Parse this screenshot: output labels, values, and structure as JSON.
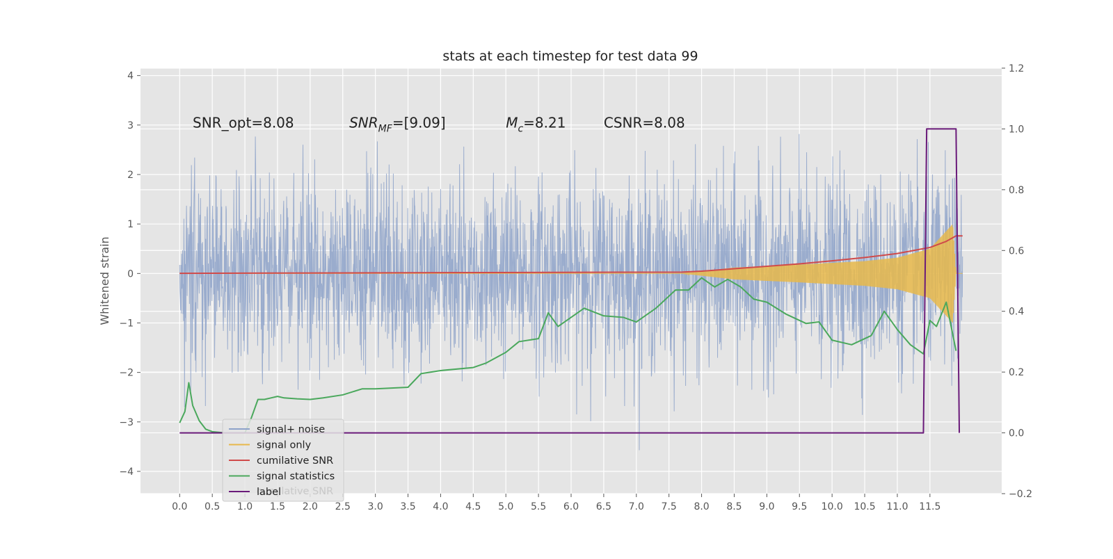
{
  "chart_data": {
    "type": "line",
    "title": "stats at each timestep for test data 99",
    "ylabel": "Whitened strain",
    "xlabel": "",
    "x_ticks": [
      "0.0",
      "0.5",
      "1.0",
      "1.5",
      "2.0",
      "2.5",
      "3.0",
      "3.5",
      "4.0",
      "4.5",
      "5.0",
      "5.5",
      "6.0",
      "6.5",
      "7.0",
      "7.5",
      "8.0",
      "8.5",
      "9.0",
      "9.5",
      "10.0",
      "10.5",
      "11.0",
      "11.5"
    ],
    "y_left_ticks": [
      "−4",
      "−3",
      "−2",
      "−1",
      "0",
      "1",
      "2",
      "3",
      "4"
    ],
    "y_right_ticks": [
      "−0.2",
      "0.0",
      "0.2",
      "0.4",
      "0.6",
      "0.8",
      "1.0",
      "1.2"
    ],
    "xlim": [
      -0.6,
      12.6
    ],
    "ylim_left": [
      -4.45,
      4.15
    ],
    "ylim_right": [
      -0.2,
      1.2
    ],
    "grid": true,
    "legend_position": "lower-left",
    "annotations": [
      {
        "text": "SNR_opt=8.08",
        "x": 0.2,
        "y": 2.95
      },
      {
        "text": "SNR_MF=[9.09]",
        "x": 2.6,
        "y": 2.95,
        "math": true
      },
      {
        "text": "M_c=8.21",
        "x": 5.0,
        "y": 2.95,
        "math": true
      },
      {
        "text": "CSNR=8.08",
        "x": 6.5,
        "y": 2.95
      }
    ],
    "series": [
      {
        "name": "signal+ noise",
        "color": "#8da2c9",
        "axis": "left",
        "kind": "noise",
        "x_range": [
          0.0,
          12.0
        ],
        "std": 0.95
      },
      {
        "name": "signal only",
        "color": "#e8b84a",
        "axis": "left",
        "kind": "chirp",
        "x_range": [
          0.0,
          12.0
        ],
        "envelope": [
          [
            0.0,
            0.0
          ],
          [
            7.7,
            0.0
          ],
          [
            8.5,
            0.12
          ],
          [
            9.5,
            0.18
          ],
          [
            10.5,
            0.25
          ],
          [
            11.0,
            0.32
          ],
          [
            11.5,
            0.5
          ],
          [
            11.85,
            1.0
          ],
          [
            11.9,
            0.0
          ]
        ]
      },
      {
        "name": "cumilative SNR",
        "color": "#d04a4a",
        "axis": "right",
        "x": [
          0.0,
          7.7,
          8.0,
          8.5,
          9.0,
          9.5,
          10.0,
          10.5,
          11.0,
          11.5,
          11.75,
          11.9,
          12.0
        ],
        "y": [
          0.525,
          0.529,
          0.532,
          0.54,
          0.548,
          0.556,
          0.566,
          0.577,
          0.59,
          0.61,
          0.63,
          0.648,
          0.648
        ]
      },
      {
        "name": "signal statistics",
        "color": "#4aa85c",
        "axis": "right",
        "x": [
          0.0,
          0.08,
          0.14,
          0.2,
          0.3,
          0.4,
          0.5,
          0.7,
          1.0,
          1.1,
          1.2,
          1.3,
          1.4,
          1.5,
          1.6,
          1.8,
          2.0,
          2.2,
          2.5,
          2.8,
          3.0,
          3.5,
          3.7,
          4.0,
          4.5,
          4.7,
          5.0,
          5.2,
          5.5,
          5.65,
          5.8,
          6.0,
          6.2,
          6.5,
          6.8,
          7.0,
          7.3,
          7.6,
          7.8,
          8.0,
          8.2,
          8.4,
          8.6,
          8.8,
          9.0,
          9.3,
          9.6,
          9.8,
          10.0,
          10.3,
          10.6,
          10.8,
          11.0,
          11.2,
          11.4,
          11.5,
          11.6,
          11.75,
          11.9
        ],
        "y": [
          0.033,
          0.07,
          0.165,
          0.09,
          0.04,
          0.012,
          0.004,
          0.0,
          0.0,
          0.05,
          0.11,
          0.11,
          0.115,
          0.12,
          0.115,
          0.112,
          0.11,
          0.115,
          0.125,
          0.145,
          0.145,
          0.15,
          0.195,
          0.205,
          0.215,
          0.23,
          0.265,
          0.3,
          0.31,
          0.395,
          0.35,
          0.38,
          0.41,
          0.385,
          0.38,
          0.365,
          0.41,
          0.47,
          0.47,
          0.51,
          0.48,
          0.505,
          0.48,
          0.44,
          0.43,
          0.39,
          0.36,
          0.365,
          0.305,
          0.29,
          0.32,
          0.4,
          0.34,
          0.29,
          0.26,
          0.37,
          0.35,
          0.43,
          0.27
        ]
      },
      {
        "name": "label",
        "color": "#6a1a7a",
        "axis": "right",
        "x": [
          0.0,
          11.4,
          11.45,
          11.9,
          11.95
        ],
        "y": [
          0.0,
          0.0,
          1.0,
          1.0,
          0.0
        ]
      }
    ],
    "legend_entries": [
      "signal+ noise",
      "signal only",
      "cumilative SNR",
      "signal statistics",
      "label"
    ],
    "legend_ghost_text": "cumilative SNR"
  }
}
